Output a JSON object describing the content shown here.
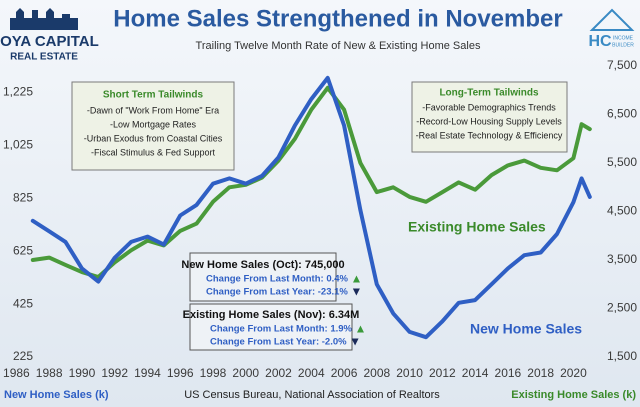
{
  "chart_data": {
    "type": "line",
    "title": "Home Sales Strengthened in November",
    "subtitle": "Trailing Twelve Month Rate of New & Existing Home Sales",
    "ylabel": "New Home Sales (k)",
    "y2label": "Existing Home Sales (k)",
    "source": "US Census Bureau, National Association of Realtors",
    "x": [
      1987,
      1988,
      1989,
      1990,
      1991,
      1992,
      1993,
      1994,
      1995,
      1996,
      1997,
      1998,
      1999,
      2000,
      2001,
      2002,
      2003,
      2004,
      2005,
      2006,
      2007,
      2008,
      2009,
      2010,
      2011,
      2012,
      2013,
      2014,
      2015,
      2016,
      2017,
      2018,
      2019,
      2020,
      2020.5,
      2021
    ],
    "xlim": [
      1985,
      2021.5
    ],
    "xticks": [
      1986,
      1988,
      1990,
      1992,
      1994,
      1996,
      1998,
      2000,
      2002,
      2004,
      2006,
      2008,
      2010,
      2012,
      2014,
      2016,
      2018,
      2020
    ],
    "ylim": [
      225,
      1325
    ],
    "yticks": [
      225,
      425,
      625,
      825,
      {
        "value": 1025,
        "label": "1,025"
      },
      {
        "value": 1225,
        "label": "1,225"
      }
    ],
    "y2lim": [
      1500,
      7500
    ],
    "y2ticks": [
      {
        "value": 1500,
        "label": "1,500"
      },
      {
        "value": 2500,
        "label": "2,500"
      },
      {
        "value": 3500,
        "label": "3,500"
      },
      {
        "value": 4500,
        "label": "4,500"
      },
      {
        "value": 5500,
        "label": "5,500"
      },
      {
        "value": 6500,
        "label": "6,500"
      },
      {
        "value": 7500,
        "label": "7,500"
      }
    ],
    "series": [
      {
        "name": "New Home Sales",
        "color": "#2f5fc4",
        "values": [
          740,
          700,
          660,
          560,
          510,
          600,
          660,
          680,
          650,
          760,
          800,
          880,
          900,
          880,
          910,
          980,
          1100,
          1200,
          1280,
          1100,
          780,
          500,
          390,
          320,
          300,
          360,
          430,
          440,
          500,
          560,
          610,
          620,
          690,
          810,
          900,
          830
        ]
      },
      {
        "name": "Existing Home Sales",
        "color": "#4a9a3a",
        "axis": "y2",
        "values": [
          3500,
          3550,
          3400,
          3250,
          3150,
          3450,
          3700,
          3900,
          3800,
          4100,
          4250,
          4700,
          5000,
          5050,
          5200,
          5550,
          6000,
          6600,
          7050,
          6600,
          5500,
          4900,
          5000,
          4800,
          4700,
          4900,
          5100,
          4950,
          5250,
          5450,
          5550,
          5400,
          5350,
          5600,
          6300,
          6200
        ]
      }
    ]
  },
  "logos": {
    "left": {
      "name": "HOYA CAPITAL",
      "sub": "REAL ESTATE"
    },
    "right": {
      "name": "HC",
      "sub1": "INCOME",
      "sub2": "BUILDER"
    }
  },
  "notes": {
    "short_term": {
      "title": "Short Term Tailwinds",
      "items": [
        "-Dawn of \"Work From Home\" Era",
        "-Low Mortgage Rates",
        "-Urban Exodus from Coastal Cities",
        "-Fiscal Stimulus & Fed Support"
      ]
    },
    "long_term": {
      "title": "Long-Term Tailwinds",
      "items": [
        "-Favorable Demographics Trends",
        "-Record-Low Housing Supply Levels",
        "-Real Estate Technology & Efficiency"
      ]
    },
    "new_box": {
      "title": "New Home Sales (Oct): 745,000",
      "month": "Change From Last Month: 0.4%",
      "year": "Change From Last Year: -23.1%"
    },
    "existing_box": {
      "title": "Existing Home Sales (Nov): 6.34M",
      "month": "Change From Last Month: 1.9%",
      "year": "Change From Last Year: -2.0%"
    }
  }
}
